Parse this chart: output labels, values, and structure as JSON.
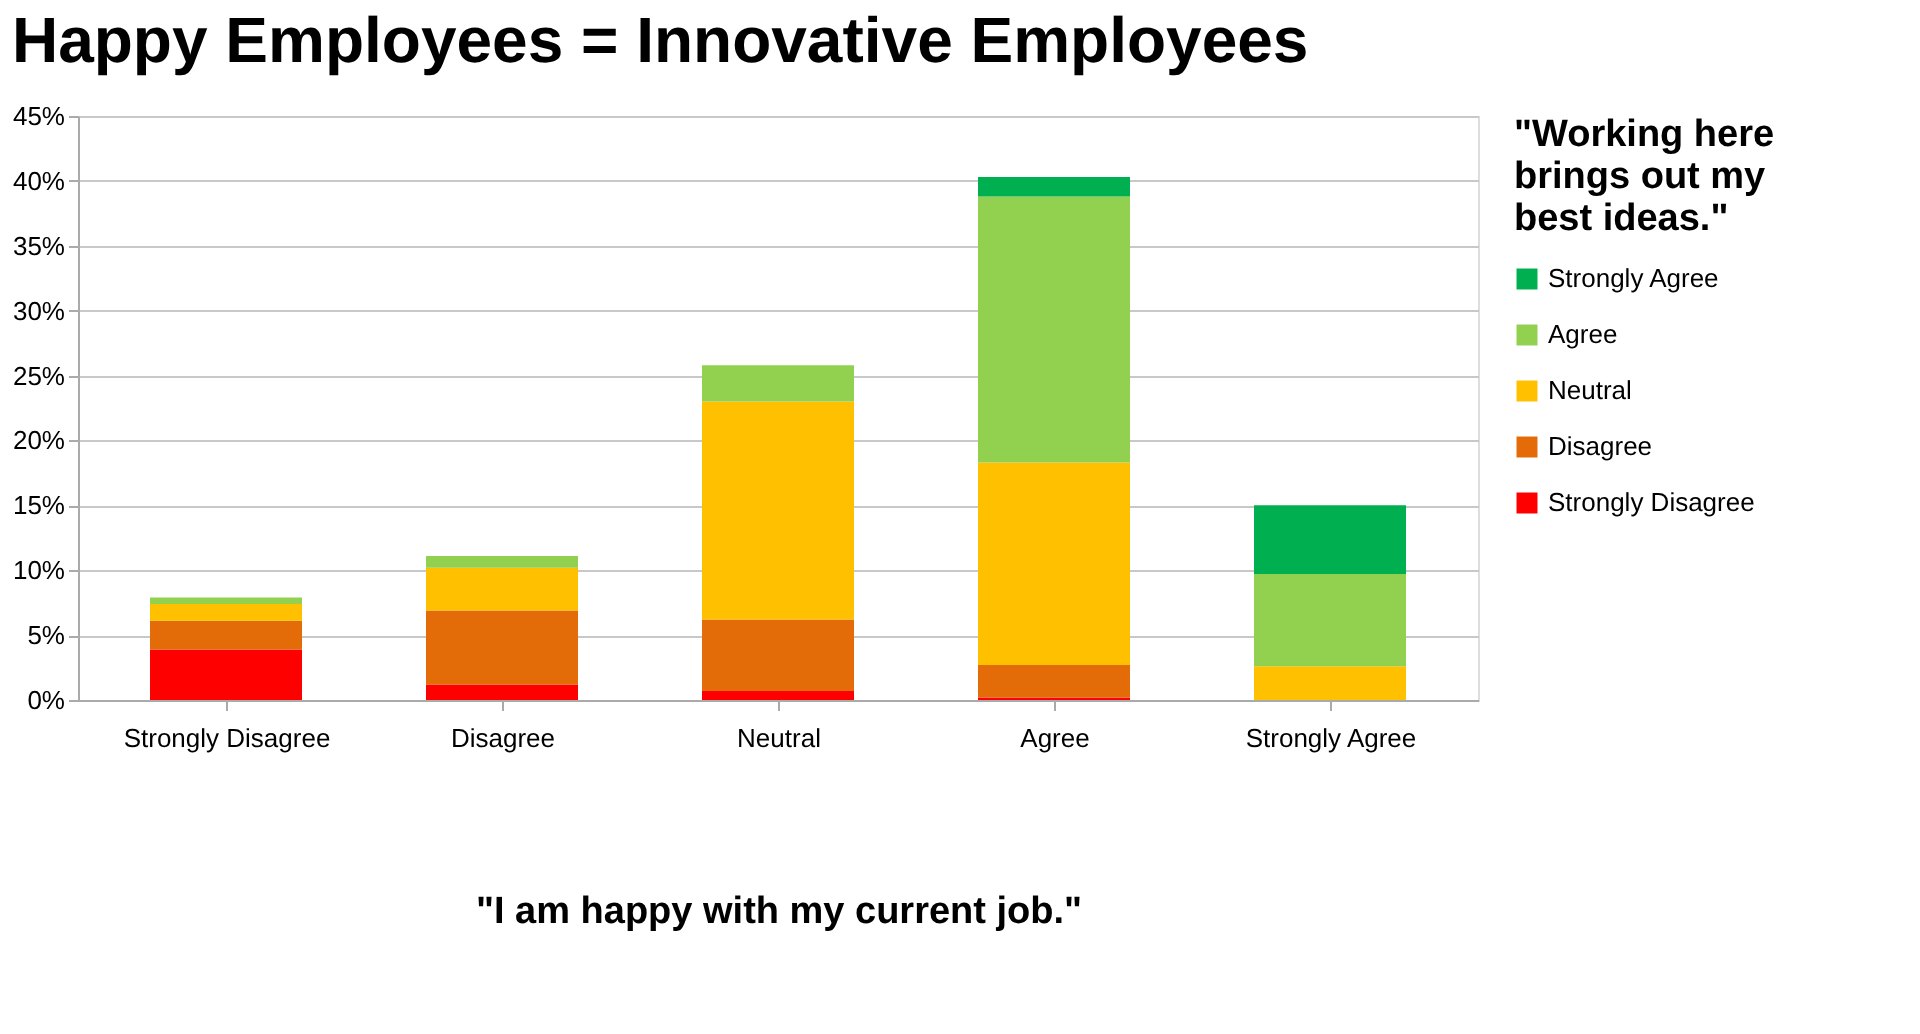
{
  "chart_data": {
    "type": "bar",
    "stacked": true,
    "title": "Happy Employees = Innovative Employees",
    "xlabel": "\"I am happy with my current job.\"",
    "legend_title": "\"Working here brings out my best ideas.\"",
    "categories": [
      "Strongly Disagree",
      "Disagree",
      "Neutral",
      "Agree",
      "Strongly Agree"
    ],
    "series": [
      {
        "name": "Strongly Disagree",
        "color": "#ff0000",
        "values": [
          3.9,
          1.2,
          0.7,
          0.2,
          0
        ]
      },
      {
        "name": "Disagree",
        "color": "#e36c09",
        "values": [
          2.2,
          5.7,
          5.5,
          2.5,
          0
        ]
      },
      {
        "name": "Neutral",
        "color": "#ffc000",
        "values": [
          1.3,
          3.3,
          16.8,
          15.6,
          2.6
        ]
      },
      {
        "name": "Agree",
        "color": "#92d050",
        "values": [
          0.5,
          0.9,
          2.8,
          20.5,
          7.1
        ]
      },
      {
        "name": "Strongly Agree",
        "color": "#00b050",
        "values": [
          0,
          0,
          0,
          1.5,
          5.3
        ]
      }
    ],
    "ylim": [
      0,
      45
    ],
    "yticks": [
      {
        "value": 0,
        "label": "0%"
      },
      {
        "value": 5,
        "label": "5%"
      },
      {
        "value": 10,
        "label": "10%"
      },
      {
        "value": 15,
        "label": "15%"
      },
      {
        "value": 20,
        "label": "20%"
      },
      {
        "value": 25,
        "label": "25%"
      },
      {
        "value": 30,
        "label": "30%"
      },
      {
        "value": 35,
        "label": "35%"
      },
      {
        "value": 40,
        "label": "40%"
      },
      {
        "value": 45,
        "label": "45%"
      }
    ],
    "grid": "y",
    "legend": "right"
  }
}
